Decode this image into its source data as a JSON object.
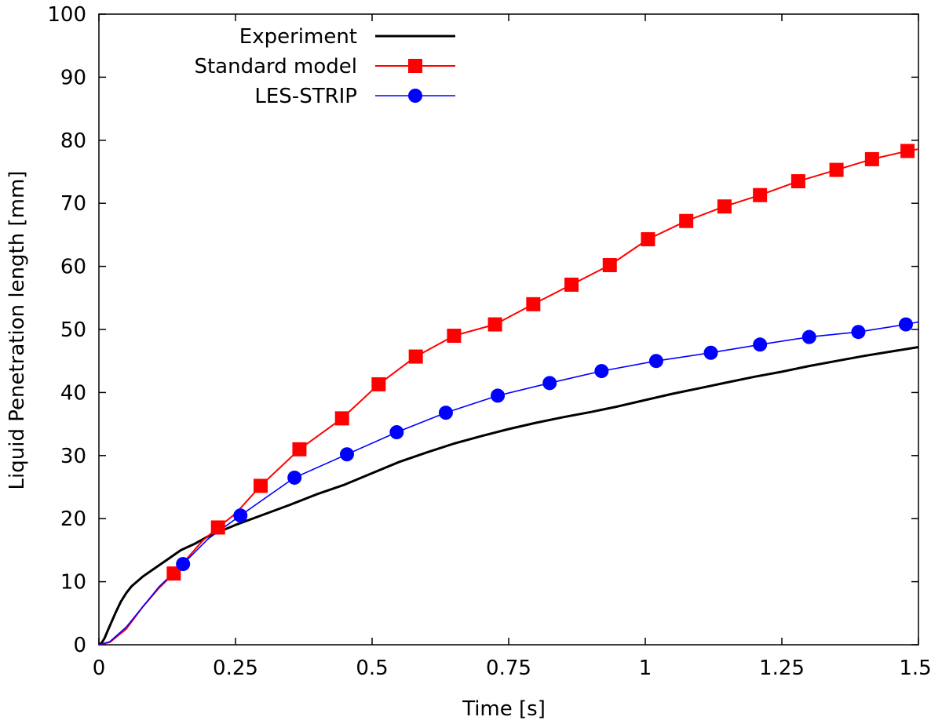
{
  "chart_data": {
    "type": "line",
    "title": "",
    "xlabel": "Time [s]",
    "ylabel": "Liquid Penetration length [mm]",
    "xlim": [
      0,
      1.5
    ],
    "ylim": [
      0,
      100
    ],
    "xticks": [
      0,
      0.25,
      0.5,
      0.75,
      1,
      1.25,
      1.5
    ],
    "xtick_labels": [
      "0",
      "0.25",
      "0.5",
      "0.75",
      "1",
      "1.25",
      "1.5"
    ],
    "yticks": [
      0,
      10,
      20,
      30,
      40,
      50,
      60,
      70,
      80,
      90,
      100
    ],
    "ytick_labels": [
      "0",
      "10",
      "20",
      "30",
      "40",
      "50",
      "60",
      "70",
      "80",
      "90",
      "100"
    ],
    "grid": false,
    "legend_position": "top-center",
    "series": [
      {
        "name": "Experiment",
        "color": "#000000",
        "marker": "none",
        "x": [
          0,
          0.005,
          0.01,
          0.015,
          0.02,
          0.03,
          0.04,
          0.05,
          0.06,
          0.08,
          0.1,
          0.125,
          0.15,
          0.175,
          0.2,
          0.25,
          0.3,
          0.35,
          0.4,
          0.45,
          0.5,
          0.55,
          0.6,
          0.65,
          0.7,
          0.75,
          0.8,
          0.85,
          0.9,
          0.95,
          1.0,
          1.05,
          1.1,
          1.15,
          1.2,
          1.25,
          1.3,
          1.35,
          1.4,
          1.45,
          1.5
        ],
        "y": [
          0,
          0.3,
          1.0,
          2.0,
          3.0,
          5.0,
          6.8,
          8.2,
          9.3,
          10.8,
          12.0,
          13.5,
          15.0,
          16.0,
          17.2,
          19.0,
          20.6,
          22.2,
          23.9,
          25.4,
          27.2,
          29.0,
          30.5,
          31.9,
          33.1,
          34.2,
          35.2,
          36.1,
          36.9,
          37.8,
          38.8,
          39.8,
          40.7,
          41.6,
          42.5,
          43.3,
          44.2,
          45.0,
          45.8,
          46.5,
          47.2
        ]
      },
      {
        "name": "Standard model",
        "color": "#ff0000",
        "marker": "square",
        "x": [
          0,
          0.02,
          0.05,
          0.08,
          0.11,
          0.137,
          0.19,
          0.218,
          0.25,
          0.296,
          0.367,
          0.445,
          0.512,
          0.58,
          0.65,
          0.725,
          0.795,
          0.865,
          0.935,
          1.005,
          1.075,
          1.145,
          1.21,
          1.28,
          1.35,
          1.415,
          1.48,
          1.5
        ],
        "y": [
          0,
          0.4,
          2.5,
          6.0,
          9.0,
          11.3,
          16.5,
          18.6,
          20.8,
          25.2,
          31.0,
          35.9,
          41.3,
          45.7,
          49.0,
          50.8,
          54.0,
          57.1,
          60.2,
          64.3,
          67.2,
          69.5,
          71.3,
          73.5,
          75.3,
          77.0,
          78.3,
          78.6
        ]
      },
      {
        "name": "LES-STRIP",
        "color": "#0000ff",
        "marker": "circle",
        "x": [
          0,
          0.02,
          0.05,
          0.08,
          0.11,
          0.154,
          0.2,
          0.259,
          0.3,
          0.358,
          0.454,
          0.545,
          0.635,
          0.73,
          0.825,
          0.92,
          1.02,
          1.12,
          1.21,
          1.3,
          1.39,
          1.477,
          1.5
        ],
        "y": [
          0,
          0.5,
          2.8,
          6.0,
          9.2,
          12.8,
          16.8,
          20.5,
          23.0,
          26.5,
          30.2,
          33.7,
          36.8,
          39.5,
          41.5,
          43.4,
          45.0,
          46.3,
          47.6,
          48.8,
          49.6,
          50.8,
          51.2
        ],
        "marker_x": [
          0.154,
          0.259,
          0.358,
          0.454,
          0.545,
          0.635,
          0.73,
          0.825,
          0.92,
          1.02,
          1.12,
          1.21,
          1.3,
          1.39,
          1.477
        ]
      }
    ]
  }
}
